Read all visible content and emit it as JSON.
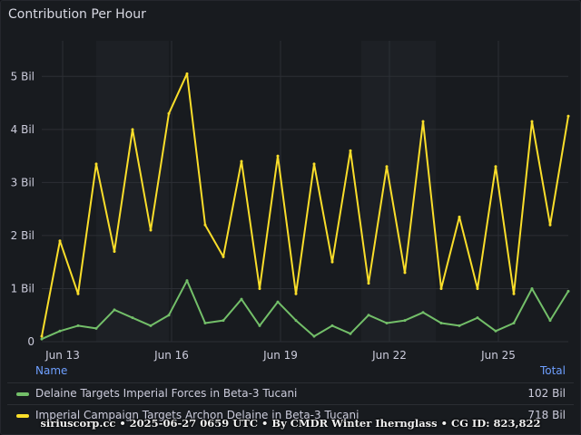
{
  "panel": {
    "title": "Contribution Per Hour"
  },
  "legend": {
    "name_header": "Name",
    "total_header": "Total",
    "items": [
      {
        "label": "Delaine Targets Imperial Forces in Beta-3 Tucani",
        "total": "102 Bil",
        "color": "#73bf69"
      },
      {
        "label": "Imperial Campaign Targets Archon Delaine in Beta-3 Tucani",
        "total": "718 Bil",
        "color": "#fade2a"
      }
    ]
  },
  "footer": {
    "text": "siriuscorp.cc • 2025-06-27 0659 UTC • By CMDR Winter Ihernglass • CG ID: 823,822"
  },
  "chart_data": {
    "type": "line",
    "title": "Contribution Per Hour",
    "xlabel": "",
    "ylabel": "",
    "y_unit": "Bil",
    "ylim": [
      0,
      5.5
    ],
    "yticks": [
      "0",
      "1 Bil",
      "2 Bil",
      "3 Bil",
      "4 Bil",
      "5 Bil"
    ],
    "xticks": [
      "Jun 13",
      "Jun 16",
      "Jun 19",
      "Jun 22",
      "Jun 25"
    ],
    "grid": true,
    "legend_position": "bottom",
    "x": [
      "Jun 12 12:00",
      "Jun 13 00:00",
      "Jun 13 12:00",
      "Jun 14 00:00",
      "Jun 14 12:00",
      "Jun 15 00:00",
      "Jun 15 12:00",
      "Jun 16 00:00",
      "Jun 16 12:00",
      "Jun 17 00:00",
      "Jun 17 12:00",
      "Jun 18 00:00",
      "Jun 18 12:00",
      "Jun 19 00:00",
      "Jun 19 12:00",
      "Jun 20 00:00",
      "Jun 20 12:00",
      "Jun 21 00:00",
      "Jun 21 12:00",
      "Jun 22 00:00",
      "Jun 22 12:00",
      "Jun 23 00:00",
      "Jun 23 12:00",
      "Jun 24 00:00",
      "Jun 24 12:00",
      "Jun 25 00:00",
      "Jun 25 12:00",
      "Jun 26 00:00",
      "Jun 26 12:00",
      "Jun 27 00:00"
    ],
    "series": [
      {
        "name": "Delaine Targets Imperial Forces in Beta-3 Tucani",
        "color": "#73bf69",
        "values": [
          0.05,
          0.2,
          0.3,
          0.25,
          0.6,
          0.45,
          0.3,
          0.5,
          1.15,
          0.35,
          0.4,
          0.8,
          0.3,
          0.75,
          0.4,
          0.1,
          0.3,
          0.15,
          0.5,
          0.35,
          0.4,
          0.55,
          0.35,
          0.3,
          0.45,
          0.2,
          0.35,
          1.0,
          0.4,
          0.95
        ]
      },
      {
        "name": "Imperial Campaign Targets Archon Delaine in Beta-3 Tucani",
        "color": "#fade2a",
        "values": [
          0.1,
          1.9,
          0.9,
          3.35,
          1.7,
          4.0,
          2.1,
          4.3,
          5.05,
          2.2,
          1.6,
          3.4,
          1.0,
          3.5,
          0.9,
          3.35,
          1.5,
          3.6,
          1.1,
          3.3,
          1.3,
          4.15,
          1.0,
          2.35,
          1.0,
          3.3,
          0.9,
          4.15,
          2.2,
          4.25
        ]
      }
    ]
  }
}
